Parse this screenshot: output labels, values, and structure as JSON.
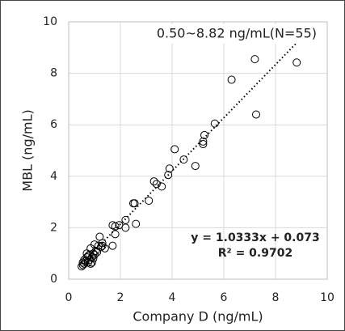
{
  "chart_data": {
    "type": "scatter",
    "annotation": "0.50~8.82 ng/mL(N=55)",
    "x_label": "Company D (ng/mL)",
    "y_label": "MBL (ng/mL)",
    "x": [
      8.82,
      7.2,
      7.25,
      6.3,
      5.65,
      5.25,
      5.2,
      5.2,
      4.9,
      4.1,
      4.45,
      3.9,
      3.85,
      3.3,
      3.4,
      3.6,
      3.1,
      2.6,
      2.5,
      2.55,
      2.2,
      2.2,
      1.95,
      1.7,
      1.8,
      1.8,
      1.7,
      1.2,
      1.3,
      1.3,
      1.25,
      1.0,
      1.05,
      0.95,
      0.85,
      0.8,
      0.75,
      0.7,
      0.65,
      0.6,
      0.55,
      0.5,
      0.6,
      0.85,
      0.9,
      0.75,
      0.7,
      1.0,
      0.8,
      1.1,
      1.4,
      0.9,
      1.15,
      0.55,
      0.95
    ],
    "values": [
      8.42,
      8.55,
      6.4,
      7.75,
      6.05,
      5.6,
      5.35,
      5.25,
      4.4,
      5.05,
      4.65,
      4.3,
      4.05,
      3.8,
      3.7,
      3.6,
      3.05,
      2.15,
      2.95,
      2.95,
      2.3,
      2.0,
      2.1,
      2.1,
      2.05,
      1.75,
      1.3,
      1.65,
      1.4,
      1.3,
      1.25,
      1.35,
      1.1,
      1.0,
      1.2,
      0.95,
      0.9,
      0.85,
      0.7,
      0.75,
      0.55,
      0.5,
      0.6,
      0.6,
      0.65,
      0.65,
      1.0,
      0.95,
      0.75,
      1.05,
      1.2,
      0.85,
      1.3,
      0.65,
      0.8
    ],
    "trendline": {
      "slope": 1.0333,
      "intercept": 0.073,
      "equation": "y = 1.0333x + 0.073",
      "r2": "R² = 0.9702"
    },
    "xlim": [
      0,
      10
    ],
    "ylim": [
      0,
      10
    ],
    "xticks": [
      0,
      2,
      4,
      6,
      8,
      10
    ],
    "yticks": [
      0,
      2,
      4,
      6,
      8,
      10
    ],
    "grid": true,
    "color": "#000000"
  }
}
